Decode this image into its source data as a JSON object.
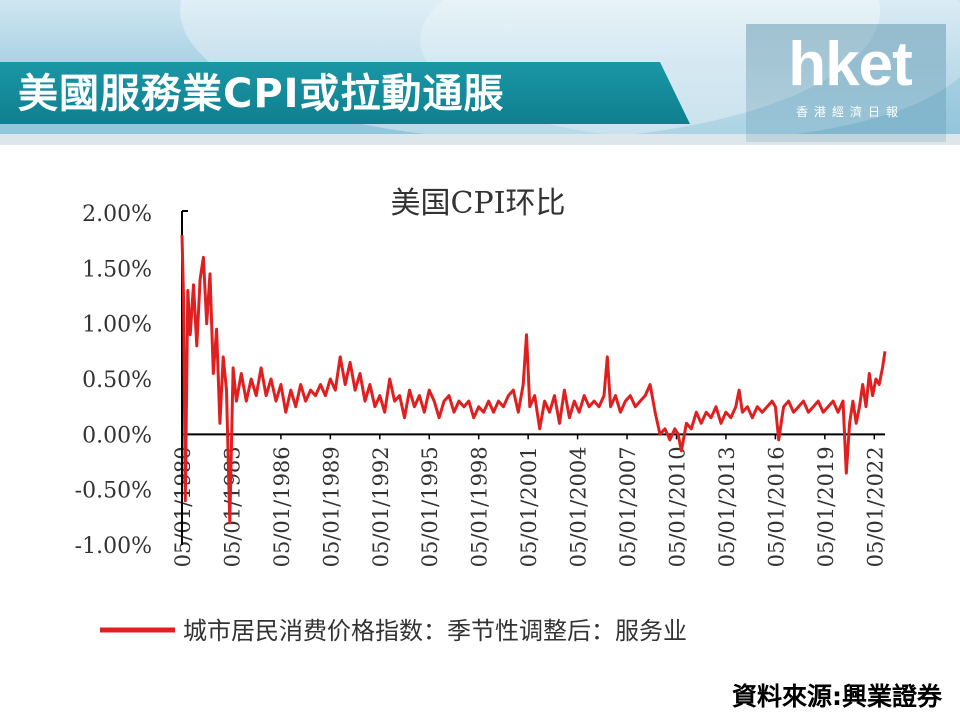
{
  "header": {
    "title": "美國服務業CPI或拉動通脹",
    "logo_text": "hket",
    "logo_sub": "香港經濟日報"
  },
  "source": "資料來源:興業證券",
  "colors": {
    "banner": "#1a97a6",
    "series": "#e02020",
    "axis": "#000000"
  },
  "chart_data": {
    "type": "line",
    "title": "美国CPI环比",
    "xlabel": "",
    "ylabel": "",
    "ylim": [
      -1.0,
      2.0
    ],
    "y_ticks": [
      "2.00%",
      "1.50%",
      "1.00%",
      "0.50%",
      "0.00%",
      "-0.50%",
      "-1.00%"
    ],
    "x_ticks": [
      "05/01/1980",
      "05/01/1983",
      "05/01/1986",
      "05/01/1989",
      "05/01/1992",
      "05/01/1995",
      "05/01/1998",
      "05/01/2001",
      "05/01/2004",
      "05/01/2007",
      "05/01/2010",
      "05/01/2013",
      "05/01/2016",
      "05/01/2019",
      "05/01/2022"
    ],
    "legend": "bottom",
    "series": [
      {
        "name": "城市居民消费价格指数：季节性调整后：服务业",
        "points": [
          [
            1980.0,
            1.8
          ],
          [
            1980.1,
            1.2
          ],
          [
            1980.2,
            -0.6
          ],
          [
            1980.35,
            1.3
          ],
          [
            1980.5,
            0.9
          ],
          [
            1980.7,
            1.35
          ],
          [
            1980.9,
            0.8
          ],
          [
            1981.1,
            1.4
          ],
          [
            1981.3,
            1.6
          ],
          [
            1981.5,
            1.0
          ],
          [
            1981.7,
            1.45
          ],
          [
            1981.9,
            0.55
          ],
          [
            1982.1,
            0.95
          ],
          [
            1982.3,
            0.1
          ],
          [
            1982.5,
            0.7
          ],
          [
            1982.7,
            0.4
          ],
          [
            1982.9,
            -0.8
          ],
          [
            1983.1,
            0.6
          ],
          [
            1983.3,
            0.3
          ],
          [
            1983.6,
            0.55
          ],
          [
            1983.9,
            0.3
          ],
          [
            1984.2,
            0.5
          ],
          [
            1984.5,
            0.35
          ],
          [
            1984.8,
            0.6
          ],
          [
            1985.1,
            0.35
          ],
          [
            1985.4,
            0.5
          ],
          [
            1985.7,
            0.3
          ],
          [
            1986.0,
            0.45
          ],
          [
            1986.3,
            0.2
          ],
          [
            1986.6,
            0.4
          ],
          [
            1986.9,
            0.25
          ],
          [
            1987.2,
            0.45
          ],
          [
            1987.5,
            0.3
          ],
          [
            1987.8,
            0.4
          ],
          [
            1988.1,
            0.35
          ],
          [
            1988.4,
            0.45
          ],
          [
            1988.7,
            0.35
          ],
          [
            1989.0,
            0.5
          ],
          [
            1989.3,
            0.4
          ],
          [
            1989.6,
            0.7
          ],
          [
            1989.9,
            0.45
          ],
          [
            1990.2,
            0.65
          ],
          [
            1990.5,
            0.4
          ],
          [
            1990.8,
            0.55
          ],
          [
            1991.1,
            0.3
          ],
          [
            1991.4,
            0.45
          ],
          [
            1991.7,
            0.25
          ],
          [
            1992.0,
            0.35
          ],
          [
            1992.3,
            0.2
          ],
          [
            1992.6,
            0.5
          ],
          [
            1992.9,
            0.3
          ],
          [
            1993.2,
            0.35
          ],
          [
            1993.5,
            0.15
          ],
          [
            1993.8,
            0.4
          ],
          [
            1994.1,
            0.25
          ],
          [
            1994.4,
            0.35
          ],
          [
            1994.7,
            0.2
          ],
          [
            1995.0,
            0.4
          ],
          [
            1995.3,
            0.3
          ],
          [
            1995.6,
            0.15
          ],
          [
            1995.9,
            0.3
          ],
          [
            1996.2,
            0.35
          ],
          [
            1996.5,
            0.2
          ],
          [
            1996.8,
            0.3
          ],
          [
            1997.1,
            0.25
          ],
          [
            1997.4,
            0.3
          ],
          [
            1997.7,
            0.15
          ],
          [
            1998.0,
            0.25
          ],
          [
            1998.3,
            0.2
          ],
          [
            1998.6,
            0.3
          ],
          [
            1998.9,
            0.2
          ],
          [
            1999.2,
            0.3
          ],
          [
            1999.5,
            0.25
          ],
          [
            1999.8,
            0.35
          ],
          [
            2000.1,
            0.4
          ],
          [
            2000.4,
            0.2
          ],
          [
            2000.7,
            0.45
          ],
          [
            2000.9,
            0.9
          ],
          [
            2001.1,
            0.25
          ],
          [
            2001.4,
            0.35
          ],
          [
            2001.7,
            0.05
          ],
          [
            2002.0,
            0.3
          ],
          [
            2002.3,
            0.2
          ],
          [
            2002.6,
            0.35
          ],
          [
            2002.9,
            0.1
          ],
          [
            2003.2,
            0.4
          ],
          [
            2003.5,
            0.15
          ],
          [
            2003.8,
            0.3
          ],
          [
            2004.1,
            0.2
          ],
          [
            2004.4,
            0.35
          ],
          [
            2004.7,
            0.25
          ],
          [
            2005.0,
            0.3
          ],
          [
            2005.3,
            0.25
          ],
          [
            2005.6,
            0.35
          ],
          [
            2005.8,
            0.7
          ],
          [
            2006.0,
            0.25
          ],
          [
            2006.3,
            0.35
          ],
          [
            2006.6,
            0.2
          ],
          [
            2006.9,
            0.3
          ],
          [
            2007.2,
            0.35
          ],
          [
            2007.5,
            0.25
          ],
          [
            2007.8,
            0.3
          ],
          [
            2008.1,
            0.35
          ],
          [
            2008.4,
            0.45
          ],
          [
            2008.7,
            0.2
          ],
          [
            2009.0,
            0.0
          ],
          [
            2009.3,
            0.05
          ],
          [
            2009.6,
            -0.05
          ],
          [
            2009.9,
            0.05
          ],
          [
            2010.1,
            0.0
          ],
          [
            2010.3,
            -0.15
          ],
          [
            2010.6,
            0.1
          ],
          [
            2010.9,
            0.05
          ],
          [
            2011.2,
            0.2
          ],
          [
            2011.5,
            0.1
          ],
          [
            2011.8,
            0.2
          ],
          [
            2012.1,
            0.15
          ],
          [
            2012.4,
            0.25
          ],
          [
            2012.7,
            0.1
          ],
          [
            2013.0,
            0.2
          ],
          [
            2013.3,
            0.15
          ],
          [
            2013.6,
            0.25
          ],
          [
            2013.8,
            0.4
          ],
          [
            2014.0,
            0.2
          ],
          [
            2014.3,
            0.25
          ],
          [
            2014.6,
            0.15
          ],
          [
            2014.9,
            0.25
          ],
          [
            2015.2,
            0.2
          ],
          [
            2015.5,
            0.25
          ],
          [
            2015.8,
            0.3
          ],
          [
            2016.0,
            0.25
          ],
          [
            2016.2,
            -0.05
          ],
          [
            2016.5,
            0.25
          ],
          [
            2016.8,
            0.3
          ],
          [
            2017.1,
            0.2
          ],
          [
            2017.4,
            0.25
          ],
          [
            2017.7,
            0.3
          ],
          [
            2018.0,
            0.2
          ],
          [
            2018.3,
            0.25
          ],
          [
            2018.6,
            0.3
          ],
          [
            2018.9,
            0.2
          ],
          [
            2019.2,
            0.25
          ],
          [
            2019.5,
            0.3
          ],
          [
            2019.8,
            0.2
          ],
          [
            2020.1,
            0.3
          ],
          [
            2020.3,
            -0.35
          ],
          [
            2020.5,
            0.1
          ],
          [
            2020.7,
            0.3
          ],
          [
            2020.9,
            0.1
          ],
          [
            2021.1,
            0.25
          ],
          [
            2021.3,
            0.45
          ],
          [
            2021.5,
            0.25
          ],
          [
            2021.7,
            0.55
          ],
          [
            2021.9,
            0.35
          ],
          [
            2022.1,
            0.5
          ],
          [
            2022.3,
            0.45
          ],
          [
            2022.5,
            0.6
          ],
          [
            2022.65,
            0.75
          ]
        ]
      }
    ]
  }
}
